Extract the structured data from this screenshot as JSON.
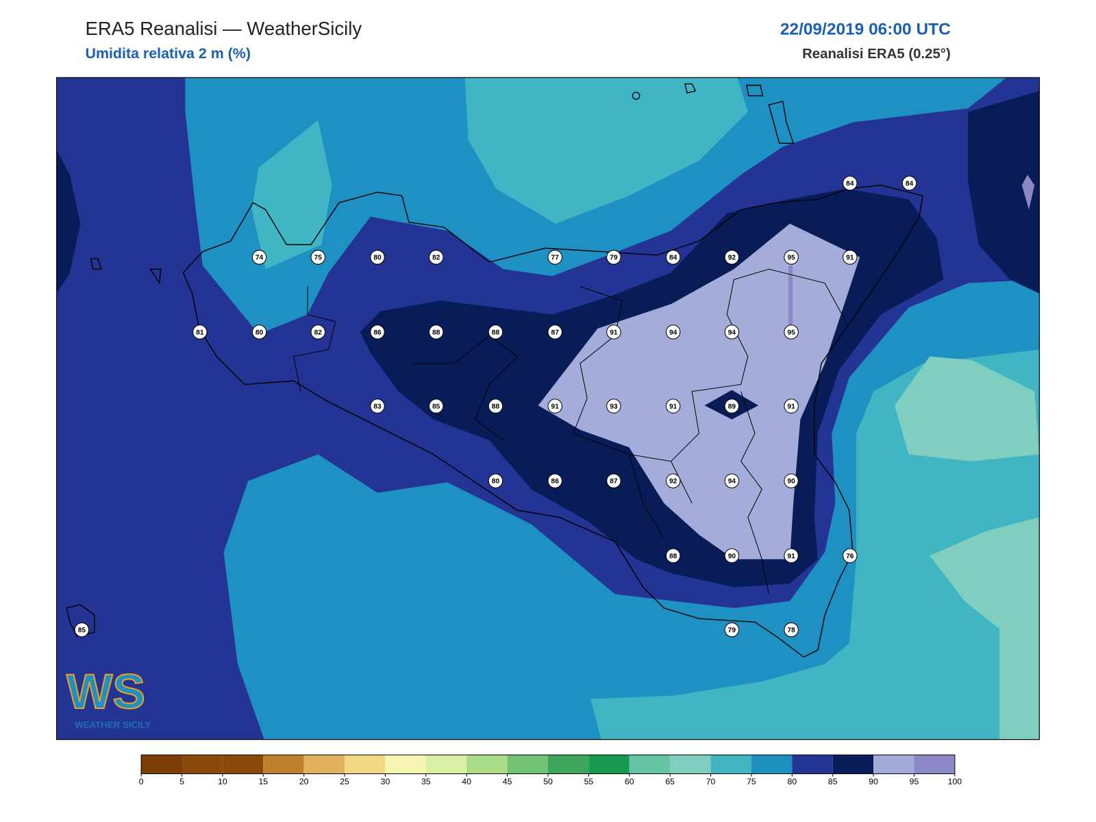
{
  "header": {
    "title": "ERA5 Reanalisi — WeatherSicily",
    "subtitle": "Umidita relativa 2 m (%)",
    "datetime": "22/09/2019 06:00 UTC",
    "source": "Reanalisi ERA5 (0.25°)"
  },
  "stations": [
    84,
    84,
    74,
    75,
    80,
    82,
    77,
    79,
    84,
    92,
    95,
    91,
    81,
    80,
    82,
    86,
    88,
    88,
    87,
    91,
    94,
    94,
    95,
    83,
    85,
    88,
    91,
    93,
    91,
    89,
    91,
    80,
    86,
    87,
    92,
    94,
    90,
    88,
    90,
    91,
    76,
    85,
    79,
    78
  ],
  "logo": {
    "mark": "WS",
    "name": "WEATHER SICILY"
  },
  "colorbar": {
    "ticks": [
      0,
      5,
      10,
      15,
      20,
      25,
      30,
      35,
      40,
      45,
      50,
      55,
      60,
      65,
      70,
      75,
      80,
      85,
      90,
      95,
      100
    ],
    "colors": [
      "#7b3f05",
      "#8a4a0c",
      "#8a4a0c",
      "#c0812f",
      "#dfb15d",
      "#f1d983",
      "#f6f5b1",
      "#d9eea6",
      "#abdc8c",
      "#73c274",
      "#3ea55a",
      "#159a4f",
      "#66c2a4",
      "#80cebf",
      "#40b5c4",
      "#1e90c0",
      "#233494",
      "#081d58",
      "#a3acd9",
      "#8c88c6"
    ]
  }
}
